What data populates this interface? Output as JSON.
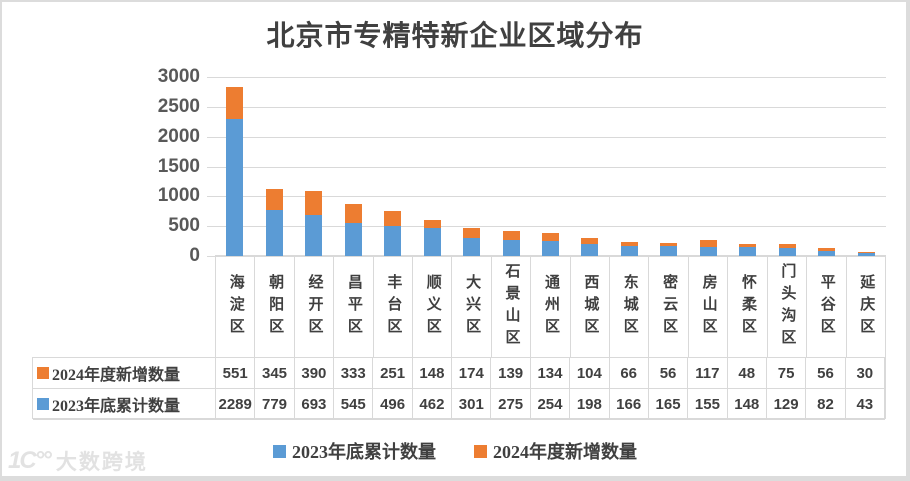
{
  "colors": {
    "series_2023_blue": "#5B9BD5",
    "series_2024_orange": "#ED7D31",
    "gridline": "#D9D9D9",
    "axis_text": "#595959",
    "table_text": "#404040"
  },
  "chart_data": {
    "type": "bar",
    "stacked": true,
    "title": "北京市专精特新企业区域分布",
    "categories": [
      "海淀区",
      "朝阳区",
      "经开区",
      "昌平区",
      "丰台区",
      "顺义区",
      "大兴区",
      "石景山区",
      "通州区",
      "西城区",
      "东城区",
      "密云区",
      "房山区",
      "怀柔区",
      "门头沟区",
      "平谷区",
      "延庆区"
    ],
    "series": [
      {
        "name": "2023年底累计数量",
        "color": "#5B9BD5",
        "values": [
          2289,
          779,
          693,
          545,
          496,
          462,
          301,
          275,
          254,
          198,
          166,
          165,
          155,
          148,
          129,
          82,
          43
        ]
      },
      {
        "name": "2024年度新增数量",
        "color": "#ED7D31",
        "values": [
          551,
          345,
          390,
          333,
          251,
          148,
          174,
          139,
          134,
          104,
          66,
          56,
          117,
          48,
          75,
          56,
          30
        ]
      }
    ],
    "ylim": [
      0,
      3000
    ],
    "ytick_interval": 500,
    "yticks": [
      "3000",
      "2500",
      "2000",
      "1500",
      "1000",
      "500",
      "0"
    ],
    "grid": true,
    "legend_position": "bottom",
    "legend": [
      "2023年底累计数量",
      "2024年度新增数量"
    ]
  },
  "table": {
    "rows": [
      {
        "label": "2024年度新增数量",
        "swatch": "#ED7D31",
        "values": [
          "551",
          "345",
          "390",
          "333",
          "251",
          "148",
          "174",
          "139",
          "134",
          "104",
          "66",
          "56",
          "117",
          "48",
          "75",
          "56",
          "30"
        ]
      },
      {
        "label": "2023年底累计数量",
        "swatch": "#5B9BD5",
        "values": [
          "2289",
          "779",
          "693",
          "545",
          "496",
          "462",
          "301",
          "275",
          "254",
          "198",
          "166",
          "165",
          "155",
          "148",
          "129",
          "82",
          "43"
        ]
      }
    ]
  },
  "watermark": {
    "logo": "1C°°",
    "text": "大数跨境"
  }
}
